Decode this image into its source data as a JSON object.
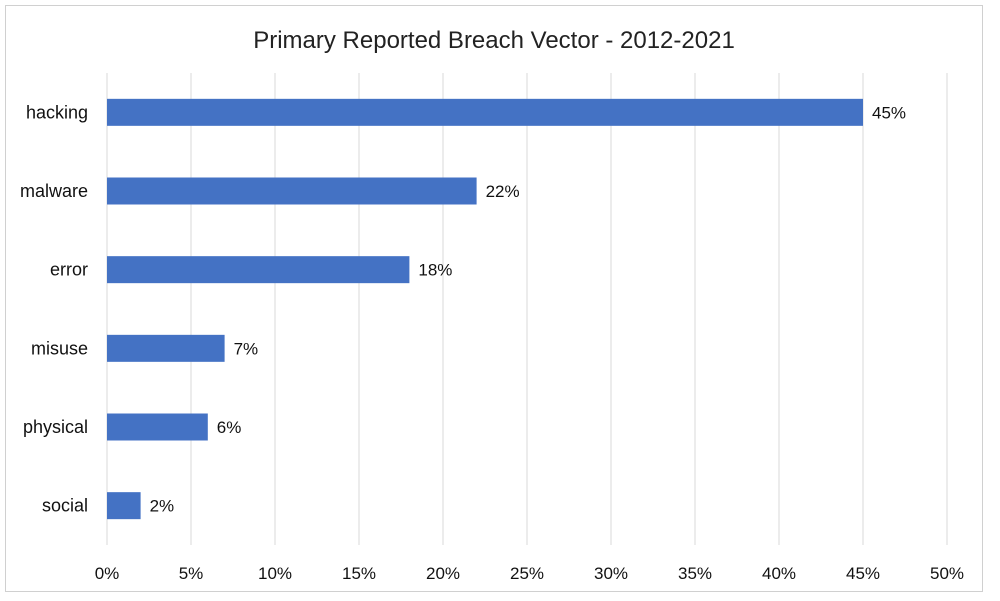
{
  "chart_data": {
    "type": "bar",
    "orientation": "horizontal",
    "title": "Primary Reported Breach Vector - 2012-2021",
    "categories": [
      "hacking",
      "malware",
      "error",
      "misuse",
      "physical",
      "social"
    ],
    "values": [
      45,
      22,
      18,
      7,
      6,
      2
    ],
    "data_labels": [
      "45%",
      "22%",
      "18%",
      "7%",
      "6%",
      "2%"
    ],
    "xlim": [
      0,
      50
    ],
    "x_ticks": [
      0,
      5,
      10,
      15,
      20,
      25,
      30,
      35,
      40,
      45,
      50
    ],
    "x_tick_labels": [
      "0%",
      "5%",
      "10%",
      "15%",
      "20%",
      "25%",
      "30%",
      "35%",
      "40%",
      "45%",
      "50%"
    ],
    "xlabel": "",
    "ylabel": "",
    "grid": "vertical",
    "legend": "none",
    "bar_color": "#4472C4",
    "grid_color": "#d9d9d9"
  }
}
